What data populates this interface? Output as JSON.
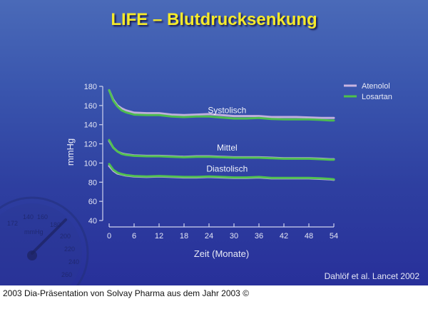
{
  "slide": {
    "title": "LIFE – Blutdrucksenkung",
    "citation": "Dahlöf et al. Lancet 2002",
    "background_colors": {
      "top": "#4a6ab8",
      "bottom": "#28309a"
    },
    "title_color": "#f5ea2a",
    "decoration": "blood-pressure-gauge-watermark"
  },
  "footer": {
    "text": "2003 Dia-Präsentation von Solvay Pharma aus dem Jahr 2003 ©"
  },
  "chart_data": {
    "type": "line",
    "title": "LIFE – Blutdrucksenkung",
    "xlabel": "Zeit (Monate)",
    "ylabel": "mmHg",
    "xlim": [
      0,
      54
    ],
    "ylim": [
      40,
      180
    ],
    "x_ticks": [
      0,
      6,
      12,
      18,
      24,
      30,
      36,
      42,
      48,
      54
    ],
    "y_ticks": [
      40,
      60,
      80,
      100,
      120,
      140,
      160,
      180
    ],
    "grid": false,
    "legend_position": "top-right",
    "legend": [
      {
        "name": "Atenolol",
        "color": "#c8b4e0"
      },
      {
        "name": "Losartan",
        "color": "#4ec24a"
      }
    ],
    "annotations": [
      {
        "text": "Systolisch",
        "x": 28,
        "y": 152
      },
      {
        "text": "Mittel",
        "x": 28,
        "y": 113
      },
      {
        "text": "Diastolisch",
        "x": 28,
        "y": 91
      }
    ],
    "x": [
      0,
      1,
      2,
      3,
      4,
      6,
      9,
      12,
      15,
      18,
      21,
      24,
      27,
      30,
      33,
      36,
      39,
      42,
      45,
      48,
      51,
      53,
      54
    ],
    "series": [
      {
        "name": "Atenolol",
        "group": "Systolisch",
        "color": "#c8b4e0",
        "values": [
          176,
          166,
          160,
          157,
          155,
          152.5,
          152,
          152,
          150.5,
          150,
          150.5,
          151,
          150,
          149,
          149,
          149,
          148,
          148,
          148,
          147.5,
          147,
          147,
          147
        ]
      },
      {
        "name": "Losartan",
        "group": "Systolisch",
        "color": "#4ec24a",
        "values": [
          176,
          165,
          159,
          155,
          153,
          150.5,
          150,
          150,
          148.5,
          148,
          148.5,
          148.5,
          147.5,
          146.5,
          146.5,
          147,
          146,
          145.5,
          145.5,
          145.5,
          145,
          144.5,
          144.5
        ]
      },
      {
        "name": "Atenolol",
        "group": "Mittel",
        "color": "#c8b4e0",
        "values": [
          123,
          116,
          112,
          110,
          109,
          108,
          107.5,
          107.5,
          107,
          106.5,
          107,
          107,
          106.5,
          106,
          106,
          106,
          105.5,
          105,
          105,
          105,
          104.5,
          104,
          104
        ]
      },
      {
        "name": "Losartan",
        "group": "Mittel",
        "color": "#4ec24a",
        "values": [
          124,
          116,
          112,
          109.5,
          108.5,
          107.5,
          107,
          107,
          106.5,
          106,
          106.5,
          106.5,
          106,
          105.5,
          105.5,
          105.5,
          105,
          104.5,
          104.5,
          104.5,
          104,
          103.5,
          103.5
        ]
      },
      {
        "name": "Atenolol",
        "group": "Diastolisch",
        "color": "#c8b4e0",
        "values": [
          97,
          92,
          89,
          88,
          87,
          86,
          85.5,
          86,
          85.5,
          85,
          85,
          85.5,
          85,
          84.5,
          84.5,
          85,
          84,
          84,
          84,
          84,
          83.5,
          83,
          82.5
        ]
      },
      {
        "name": "Losartan",
        "group": "Diastolisch",
        "color": "#4ec24a",
        "values": [
          99,
          93,
          90,
          88.5,
          87.5,
          86.5,
          86,
          86.5,
          86,
          85.5,
          85.5,
          86,
          85.5,
          85,
          85,
          85.5,
          84.5,
          84.5,
          84.5,
          84.5,
          84,
          83.5,
          83
        ]
      }
    ]
  }
}
